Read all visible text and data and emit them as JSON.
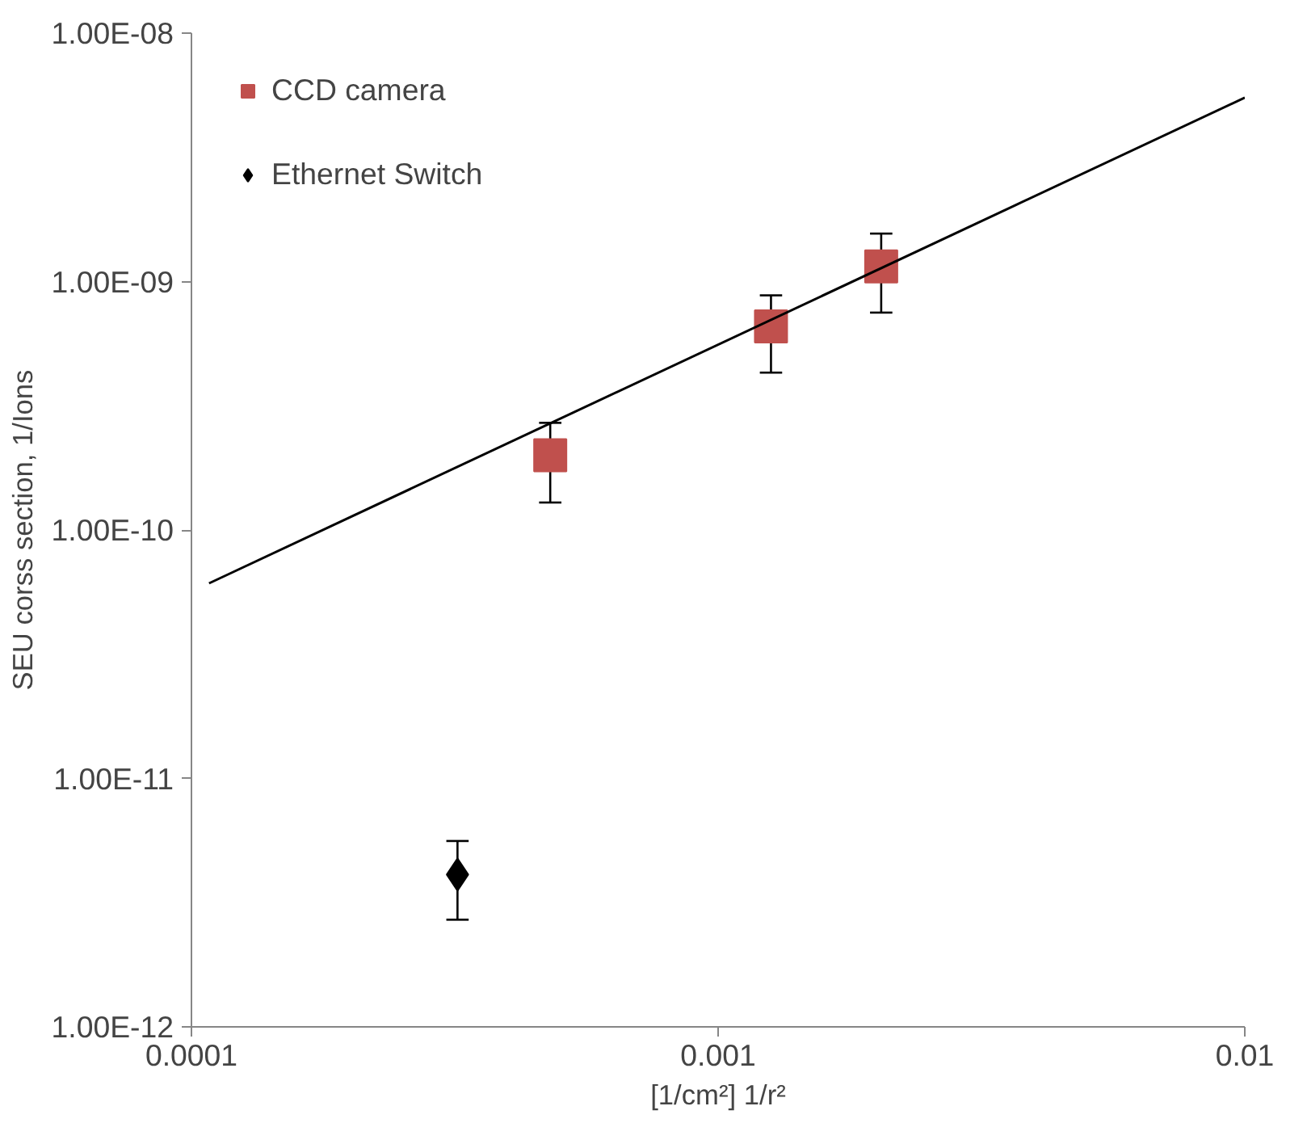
{
  "chart_data": {
    "type": "scatter",
    "xlabel": "[1/cm²] 1/r²",
    "ylabel": "SEU corss section, 1/Ions",
    "log": "xy",
    "grid": false,
    "legend": "top left",
    "xlim": [
      0.0001,
      0.01
    ],
    "xticks": [
      {
        "value": 0.0001,
        "label": "0.0001"
      },
      {
        "value": 0.001,
        "label": "0.001"
      },
      {
        "value": 0.01,
        "label": "0.01"
      }
    ],
    "ylim": [
      1e-12,
      1e-08
    ],
    "yticks": [
      {
        "value": 1e-12,
        "label": "1.00E-12"
      },
      {
        "value": 1e-11,
        "label": "1.00E-11"
      },
      {
        "value": 1e-10,
        "label": "1.00E-10"
      },
      {
        "value": 1e-09,
        "label": "1.00E-09"
      },
      {
        "value": 1e-08,
        "label": "1.00E-08"
      }
    ],
    "series": [
      {
        "name": "CCD camera",
        "color": "#c0504d",
        "marker": "square",
        "x": [
          0.00048,
          0.00126,
          0.00204
        ],
        "values": [
          2e-10,
          6.6e-10,
          1.15e-09
        ],
        "errors": [
          [
            1.29e-10,
            2.7e-10
          ],
          [
            4.3e-10,
            8.8e-10
          ],
          [
            7.5e-10,
            1.56e-09
          ]
        ]
      },
      {
        "name": "Ethernet Switch",
        "color": "#000000",
        "marker": "diamond",
        "x": [
          0.00032
        ],
        "values": [
          4.1e-12
        ],
        "errors": [
          [
            2.7e-12,
            5.6e-12
          ]
        ]
      },
      {
        "type": "line",
        "color": "#000000",
        "line_style": "solid",
        "x": [
          0.000108,
          0.01
        ],
        "values": [
          6.1e-11,
          5.5e-09
        ]
      }
    ]
  }
}
